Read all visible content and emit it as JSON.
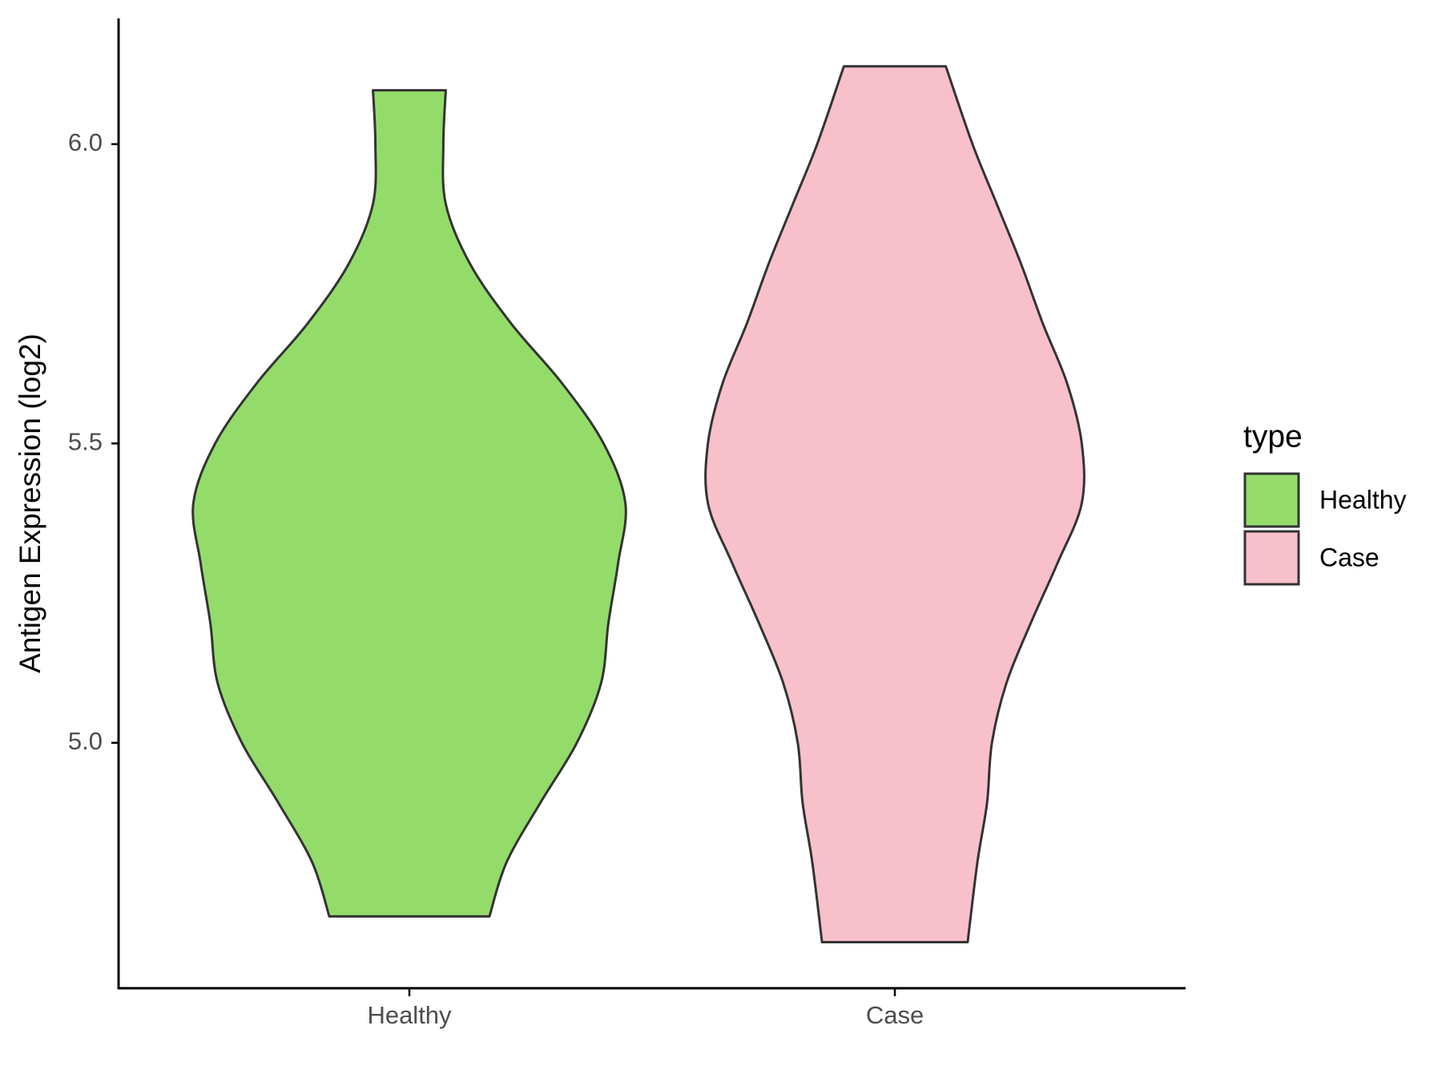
{
  "chart_data": {
    "type": "violin",
    "y_label": "Antigen Expression (log2)",
    "categories": [
      "Healthy",
      "Case"
    ],
    "legend_title": "type",
    "legend_position": "right",
    "series": [
      {
        "name": "Healthy",
        "color": "#93dc6a",
        "y": [
          6.09,
          6.0,
          5.9,
          5.8,
          5.7,
          5.6,
          5.5,
          5.4,
          5.3,
          5.2,
          5.1,
          5.0,
          4.9,
          4.8,
          4.71
        ],
        "density": [
          0.15,
          0.14,
          0.15,
          0.25,
          0.42,
          0.63,
          0.8,
          0.89,
          0.86,
          0.82,
          0.79,
          0.69,
          0.54,
          0.4,
          0.33
        ]
      },
      {
        "name": "Case",
        "color": "#f7c0cb",
        "y": [
          6.13,
          6.0,
          5.9,
          5.8,
          5.7,
          5.6,
          5.5,
          5.4,
          5.3,
          5.2,
          5.1,
          5.0,
          4.9,
          4.8,
          4.667
        ],
        "density": [
          0.21,
          0.32,
          0.42,
          0.52,
          0.61,
          0.71,
          0.77,
          0.77,
          0.67,
          0.56,
          0.46,
          0.4,
          0.38,
          0.34,
          0.3
        ]
      }
    ],
    "ylim": [
      4.59,
      6.21
    ],
    "yticks": [
      {
        "value": 5,
        "label": "5.0"
      },
      5.5,
      {
        "value": 6,
        "label": "6.0"
      }
    ],
    "grid": false
  }
}
